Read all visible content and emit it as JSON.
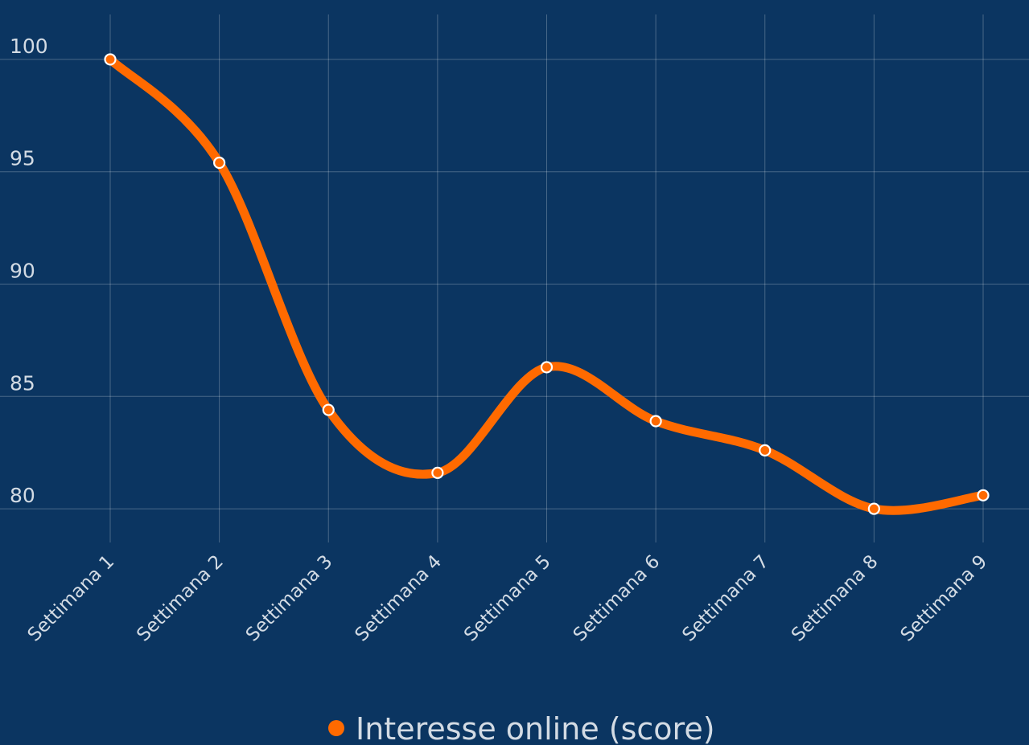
{
  "chart_data": {
    "type": "line",
    "categories": [
      "Settimana 1",
      "Settimana 2",
      "Settimana 3",
      "Settimana 4",
      "Settimana 5",
      "Settimana 6",
      "Settimana 7",
      "Settimana 8",
      "Settimana 9"
    ],
    "series": [
      {
        "name": "Interesse online (score)",
        "color": "#ff6a00",
        "values": [
          100,
          95.4,
          84.4,
          81.6,
          86.3,
          83.9,
          82.6,
          80.0,
          80.6
        ]
      }
    ],
    "ylim": [
      78.5,
      102
    ],
    "yticks": [
      80,
      85,
      90,
      95,
      100
    ],
    "grid": true,
    "smooth": true,
    "legend": "bottom"
  }
}
